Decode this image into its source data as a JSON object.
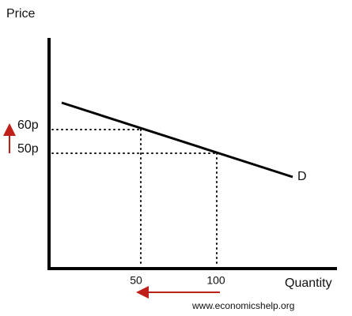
{
  "axes": {
    "y_label": "Price",
    "x_label": "Quantity"
  },
  "curve_label": "D",
  "price_labels": [
    "60p",
    "50p"
  ],
  "quantity_labels": [
    "50",
    "100"
  ],
  "watermark": "www.economicshelp.org"
}
